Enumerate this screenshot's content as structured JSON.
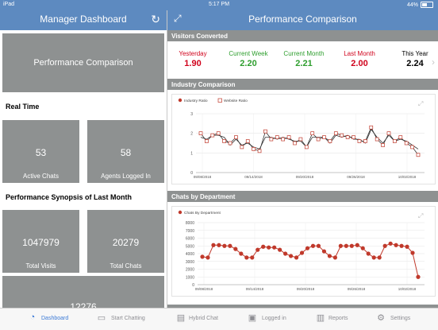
{
  "status_bar": {
    "device": "iPad",
    "time": "5:17 PM",
    "battery": "44%"
  },
  "left_nav": {
    "title": "Manager Dashboard"
  },
  "right_nav": {
    "title": "Performance Comparison"
  },
  "left": {
    "performance_button": "Performance Comparison",
    "realtime_title": "Real Time",
    "active_chats": {
      "value": "53",
      "label": "Active Chats"
    },
    "agents_logged_in": {
      "value": "58",
      "label": "Agents Logged In"
    },
    "synopsis_title": "Performance Synopsis of Last Month",
    "total_visits": {
      "value": "1047979",
      "label": "Total Visits"
    },
    "total_chats": {
      "value": "20279",
      "label": "Total Chats"
    },
    "partial_tile": {
      "value": "12276"
    }
  },
  "visitors": {
    "title": "Visitors Converted",
    "items": [
      {
        "label": "Yesterday",
        "value": "1.90",
        "color": "#d0021b"
      },
      {
        "label": "Current Week",
        "value": "2.20",
        "color": "#2e9e2e"
      },
      {
        "label": "Current Month",
        "value": "2.21",
        "color": "#2e9e2e"
      },
      {
        "label": "Last Month",
        "value": "2.00",
        "color": "#d0021b"
      },
      {
        "label": "This Year",
        "value": "2.24",
        "color": "#000000"
      }
    ]
  },
  "industry": {
    "title": "Industry Comparison",
    "legend_industry": "Industry Ratio",
    "legend_website": "Website Ratio"
  },
  "dept": {
    "title": "Chats by Department",
    "legend": "Chats By Department"
  },
  "chart_data": [
    {
      "type": "line",
      "title": "Industry Comparison",
      "x_tick_labels": [
        "09/08/2018",
        "09/14/2018",
        "09/20/2018",
        "09/26/2018",
        "10/02/2018"
      ],
      "ylim": [
        0,
        3
      ],
      "y_ticks": [
        "0",
        "1",
        "2",
        "3"
      ],
      "legend_position": "top-left",
      "grid": true,
      "series": [
        {
          "name": "Industry Ratio",
          "color": "#c0392b",
          "values": [
            1.8,
            1.7,
            1.9,
            1.9,
            1.8,
            1.4,
            1.7,
            1.4,
            1.5,
            1.3,
            1.2,
            1.8,
            1.8,
            1.7,
            1.8,
            1.7,
            1.6,
            1.6,
            1.3,
            1.8,
            1.8,
            1.8,
            1.5,
            1.9,
            1.8,
            1.9,
            1.7,
            1.7,
            1.5,
            2.2,
            1.8,
            1.5,
            1.9,
            1.6,
            1.7,
            1.6,
            1.4,
            1.2
          ]
        },
        {
          "name": "Website Ratio",
          "color": "#c0392b",
          "values": [
            2.0,
            1.6,
            1.9,
            2.0,
            1.6,
            1.5,
            1.8,
            1.3,
            1.6,
            1.2,
            1.1,
            2.1,
            1.7,
            1.8,
            1.7,
            1.8,
            1.5,
            1.7,
            1.3,
            2.0,
            1.7,
            1.8,
            1.6,
            2.0,
            1.9,
            1.8,
            1.8,
            1.6,
            1.6,
            2.3,
            1.7,
            1.4,
            2.0,
            1.6,
            1.8,
            1.5,
            1.3,
            0.9
          ]
        }
      ]
    },
    {
      "type": "line",
      "title": "Chats by Department",
      "x_tick_labels": [
        "09/08/2018",
        "09/14/2018",
        "09/20/2018",
        "09/26/2018",
        "10/02/2018"
      ],
      "ylim": [
        0,
        8000
      ],
      "y_ticks": [
        "0",
        "1000",
        "2000",
        "3000",
        "4000",
        "5000",
        "6000",
        "7000",
        "8000"
      ],
      "legend_position": "top-left",
      "grid": true,
      "series": [
        {
          "name": "Chats By Department",
          "color": "#c0392b",
          "values": [
            3600,
            3500,
            5100,
            5100,
            5000,
            5000,
            4600,
            4000,
            3500,
            3500,
            4500,
            4900,
            4800,
            4800,
            4500,
            4000,
            3700,
            3500,
            4100,
            4700,
            5000,
            5000,
            4300,
            3700,
            3500,
            5000,
            5000,
            5000,
            5100,
            4700,
            4000,
            3500,
            3500,
            5000,
            5300,
            5100,
            5000,
            4900,
            4100,
            1000
          ]
        }
      ]
    }
  ],
  "tabs": [
    {
      "label": "Dashboard",
      "icon": "speedometer-icon"
    },
    {
      "label": "Start Chatting",
      "icon": "monitor-icon"
    },
    {
      "label": "Hybrid Chat",
      "icon": "hybrid-chat-icon"
    },
    {
      "label": "Logged in",
      "icon": "id-card-icon"
    },
    {
      "label": "Reports",
      "icon": "reports-icon"
    },
    {
      "label": "Settings",
      "icon": "gear-icon"
    }
  ]
}
